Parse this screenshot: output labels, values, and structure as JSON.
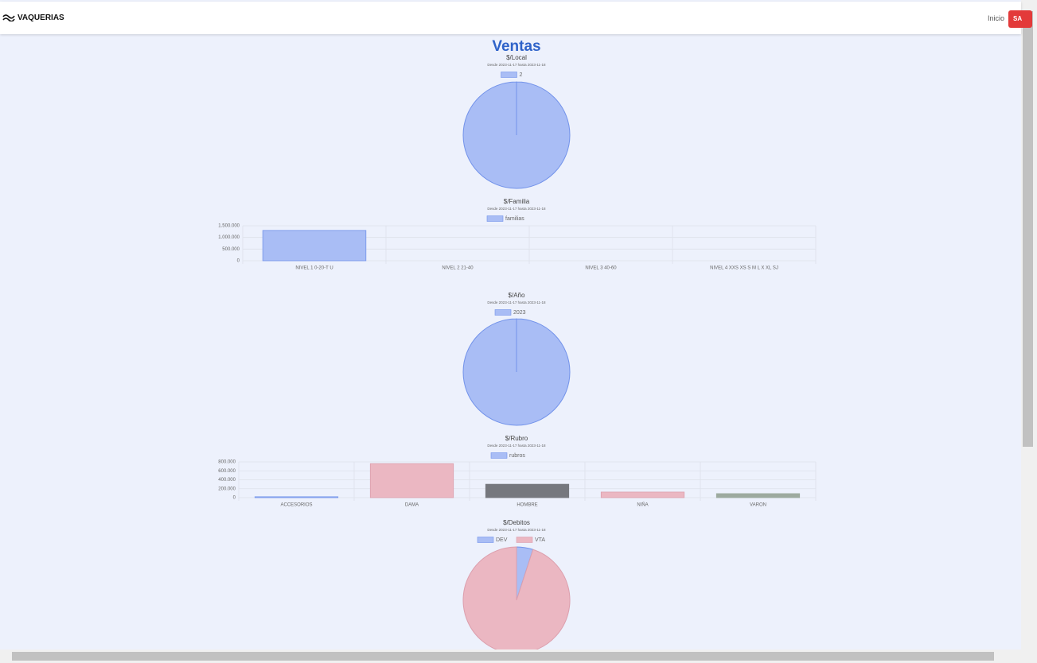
{
  "nav": {
    "brand": "VAQUERIAS",
    "link": "Inicio",
    "button": "SA"
  },
  "page_title": "Ventas",
  "chart_data": [
    {
      "type": "pie",
      "title": "$/Local",
      "subtitle": "Desde 2023-11-17 hasta 2023-11-18",
      "categories": [
        "2"
      ],
      "values": [
        1300000
      ],
      "colors": [
        "#a9bdf5"
      ]
    },
    {
      "type": "bar",
      "title": "$/Familia",
      "subtitle": "Desde 2023-11-17 hasta 2023-11-18",
      "categories": [
        "NIVEL 1  0-20-T U",
        "NIVEL 2  21-40",
        "NIVEL 3  40-60",
        "NIVEL 4  XXS XS S M L X XL SJ"
      ],
      "series": [
        {
          "name": "familias",
          "color": "#a9bdf5",
          "values": [
            1300000,
            0,
            0,
            0
          ]
        }
      ],
      "ylim": [
        0,
        1500000
      ],
      "yticks": [
        0,
        {
          "value": 500000,
          "label": "500.000"
        },
        {
          "value": 1000000,
          "label": "1.000.000"
        },
        {
          "value": 1500000,
          "label": "1.500.000"
        }
      ],
      "grid": true
    },
    {
      "type": "pie",
      "title": "$/Año",
      "subtitle": "Desde 2023-11-17 hasta 2023-11-18",
      "categories": [
        "2023"
      ],
      "values": [
        1300000
      ],
      "colors": [
        "#a9bdf5"
      ]
    },
    {
      "type": "bar",
      "title": "$/Rubro",
      "subtitle": "Desde 2023-11-17 hasta 2023-11-18",
      "categories": [
        "ACCESORIOS",
        "DAMA",
        "HOMBRE",
        "NIÑA",
        "VARON"
      ],
      "series": [
        {
          "name": "rubros",
          "color": "#a9bdf5",
          "values": [
            20000,
            760000,
            300000,
            125000,
            90000
          ],
          "colors": [
            "#a9bdf5",
            "#ebb7c2",
            "#76787e",
            "#ebb7c2",
            "#9daa9f"
          ]
        }
      ],
      "ylim": [
        0,
        800000
      ],
      "yticks": [
        0,
        {
          "value": 200000,
          "label": "200.000"
        },
        {
          "value": 400000,
          "label": "400.000"
        },
        {
          "value": 600000,
          "label": "600.000"
        },
        {
          "value": 800000,
          "label": "800.000"
        }
      ],
      "grid": true
    },
    {
      "type": "pie",
      "title": "$/Debitos",
      "subtitle": "Desde 2023-11-17 hasta 2023-11-18",
      "categories": [
        "DEV",
        "VTA"
      ],
      "values": [
        5,
        95
      ],
      "colors": [
        "#a9bdf5",
        "#ebb7c2"
      ]
    }
  ]
}
